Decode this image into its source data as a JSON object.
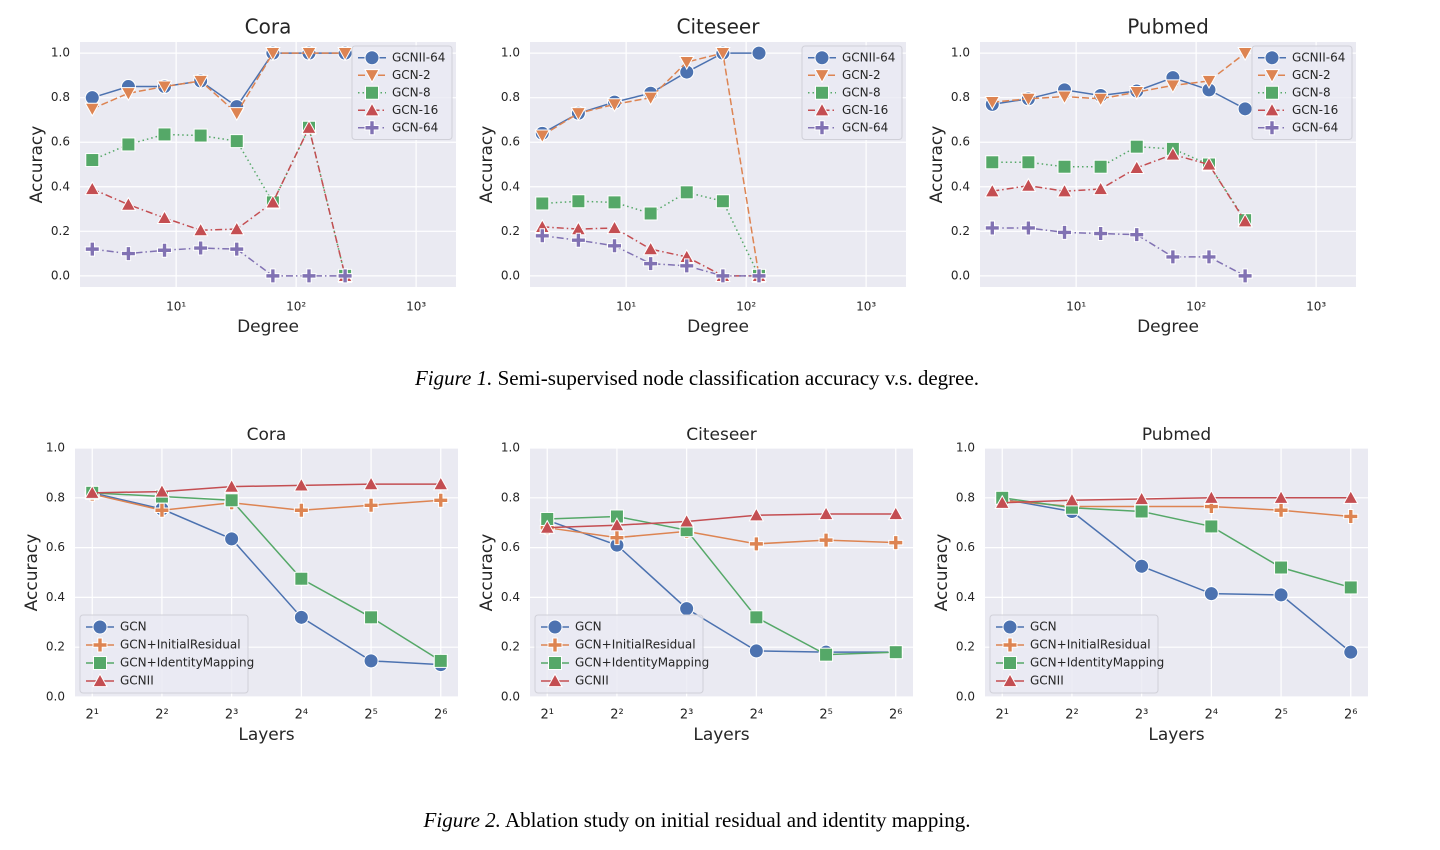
{
  "chart_data": [
    {
      "type": "line",
      "title": "Cora",
      "xlabel": "Degree",
      "ylabel": "Accuracy",
      "xscale": "log",
      "grid": true,
      "legend": "upper right",
      "x": [
        2,
        4,
        8,
        16,
        32,
        64,
        128,
        256
      ],
      "xlim": [
        1.58,
        2150
      ],
      "xticks": [
        {
          "value": 10,
          "label": "10¹"
        },
        {
          "value": 100,
          "label": "10²"
        },
        {
          "value": 1000,
          "label": "10³"
        }
      ],
      "ylim": [
        -0.05,
        1.05
      ],
      "yticks": [
        {
          "value": 0,
          "label": "0.0"
        },
        0.2,
        0.4,
        0.6,
        0.8,
        {
          "value": 1,
          "label": "1.0"
        }
      ],
      "series": [
        {
          "name": "GCNII-64",
          "color": "#4c72b0",
          "marker": "circle",
          "linestyle": "solid",
          "values": [
            0.8,
            0.85,
            0.85,
            0.875,
            0.76,
            1.0,
            1.0,
            1.0
          ]
        },
        {
          "name": "GCN-2",
          "color": "#dd8452",
          "marker": "triangle-down",
          "linestyle": "dashed",
          "values": [
            0.75,
            0.82,
            0.85,
            0.875,
            0.73,
            1.0,
            1.0,
            1.0
          ]
        },
        {
          "name": "GCN-8",
          "color": "#55a868",
          "marker": "square",
          "linestyle": "dotted",
          "values": [
            0.52,
            0.59,
            0.635,
            0.63,
            0.605,
            0.33,
            0.665,
            0.0
          ]
        },
        {
          "name": "GCN-16",
          "color": "#c44e52",
          "marker": "triangle-up",
          "linestyle": "dashdot",
          "values": [
            0.39,
            0.32,
            0.26,
            0.205,
            0.21,
            0.33,
            0.665,
            0.0
          ]
        },
        {
          "name": "GCN-64",
          "color": "#8172b3",
          "marker": "plus",
          "linestyle": "dashdot",
          "values": [
            0.12,
            0.1,
            0.115,
            0.125,
            0.12,
            0.0,
            0.0,
            0.0
          ]
        }
      ]
    },
    {
      "type": "line",
      "title": "Citeseer",
      "xlabel": "Degree",
      "ylabel": "Accuracy",
      "xscale": "log",
      "grid": true,
      "legend": "upper right",
      "x": [
        2,
        4,
        8,
        16,
        32,
        64,
        128
      ],
      "xlim": [
        1.58,
        2150
      ],
      "xticks": [
        {
          "value": 10,
          "label": "10¹"
        },
        {
          "value": 100,
          "label": "10²"
        },
        {
          "value": 1000,
          "label": "10³"
        }
      ],
      "ylim": [
        -0.05,
        1.05
      ],
      "yticks": [
        {
          "value": 0,
          "label": "0.0"
        },
        0.2,
        0.4,
        0.6,
        0.8,
        {
          "value": 1,
          "label": "1.0"
        }
      ],
      "series": [
        {
          "name": "GCNII-64",
          "color": "#4c72b0",
          "marker": "circle",
          "linestyle": "solid",
          "values": [
            0.64,
            0.73,
            0.78,
            0.82,
            0.915,
            1.0,
            1.0
          ]
        },
        {
          "name": "GCN-2",
          "color": "#dd8452",
          "marker": "triangle-down",
          "linestyle": "dashed",
          "values": [
            0.63,
            0.73,
            0.77,
            0.8,
            0.96,
            1.0,
            0.0
          ]
        },
        {
          "name": "GCN-8",
          "color": "#55a868",
          "marker": "square",
          "linestyle": "dotted",
          "values": [
            0.325,
            0.335,
            0.33,
            0.28,
            0.375,
            0.335,
            0.0
          ]
        },
        {
          "name": "GCN-16",
          "color": "#c44e52",
          "marker": "triangle-up",
          "linestyle": "dashdot",
          "values": [
            0.22,
            0.21,
            0.215,
            0.12,
            0.085,
            0.0,
            0.0
          ]
        },
        {
          "name": "GCN-64",
          "color": "#8172b3",
          "marker": "plus",
          "linestyle": "dashdot",
          "values": [
            0.18,
            0.16,
            0.135,
            0.055,
            0.045,
            0.0,
            0.0
          ]
        }
      ]
    },
    {
      "type": "line",
      "title": "Pubmed",
      "xlabel": "Degree",
      "ylabel": "Accuracy",
      "xscale": "log",
      "grid": true,
      "legend": "upper right",
      "x": [
        2,
        4,
        8,
        16,
        32,
        64,
        128,
        256
      ],
      "xlim": [
        1.58,
        2150
      ],
      "xticks": [
        {
          "value": 10,
          "label": "10¹"
        },
        {
          "value": 100,
          "label": "10²"
        },
        {
          "value": 1000,
          "label": "10³"
        }
      ],
      "ylim": [
        -0.05,
        1.05
      ],
      "yticks": [
        {
          "value": 0,
          "label": "0.0"
        },
        0.2,
        0.4,
        0.6,
        0.8,
        {
          "value": 1,
          "label": "1.0"
        }
      ],
      "series": [
        {
          "name": "GCNII-64",
          "color": "#4c72b0",
          "marker": "circle",
          "linestyle": "solid",
          "values": [
            0.77,
            0.795,
            0.835,
            0.81,
            0.83,
            0.89,
            0.835,
            0.75
          ]
        },
        {
          "name": "GCN-2",
          "color": "#dd8452",
          "marker": "triangle-down",
          "linestyle": "dashed",
          "values": [
            0.78,
            0.795,
            0.805,
            0.795,
            0.825,
            0.855,
            0.875,
            1.0
          ]
        },
        {
          "name": "GCN-8",
          "color": "#55a868",
          "marker": "square",
          "linestyle": "dotted",
          "values": [
            0.51,
            0.51,
            0.49,
            0.49,
            0.58,
            0.57,
            0.5,
            0.25
          ]
        },
        {
          "name": "GCN-16",
          "color": "#c44e52",
          "marker": "triangle-up",
          "linestyle": "dashdot",
          "values": [
            0.38,
            0.405,
            0.38,
            0.39,
            0.485,
            0.545,
            0.5,
            0.245
          ]
        },
        {
          "name": "GCN-64",
          "color": "#8172b3",
          "marker": "plus",
          "linestyle": "dashdot",
          "values": [
            0.215,
            0.215,
            0.195,
            0.19,
            0.185,
            0.085,
            0.085,
            0.0
          ]
        }
      ]
    },
    {
      "type": "line",
      "title": "Cora",
      "xlabel": "Layers",
      "ylabel": "Accuracy",
      "grid": true,
      "legend": "lower left",
      "categories": [
        "2¹",
        "2²",
        "2³",
        "2⁴",
        "2⁵",
        "2⁶"
      ],
      "ylim": [
        0,
        1
      ],
      "yticks": [
        {
          "value": 0,
          "label": "0.0"
        },
        0.2,
        0.4,
        0.6,
        0.8,
        {
          "value": 1,
          "label": "1.0"
        }
      ],
      "series": [
        {
          "name": "GCN",
          "color": "#4c72b0",
          "marker": "circle",
          "linestyle": "solid",
          "values": [
            0.82,
            0.755,
            0.635,
            0.32,
            0.145,
            0.13
          ]
        },
        {
          "name": "GCN+InitialResidual",
          "color": "#dd8452",
          "marker": "plus",
          "linestyle": "solid",
          "values": [
            0.815,
            0.75,
            0.78,
            0.75,
            0.77,
            0.79
          ]
        },
        {
          "name": "GCN+IdentityMapping",
          "color": "#55a868",
          "marker": "square",
          "linestyle": "solid",
          "values": [
            0.82,
            0.805,
            0.79,
            0.475,
            0.32,
            0.145
          ]
        },
        {
          "name": "GCNII",
          "color": "#c44e52",
          "marker": "triangle-up",
          "linestyle": "solid",
          "values": [
            0.82,
            0.825,
            0.845,
            0.85,
            0.855,
            0.855
          ]
        }
      ]
    },
    {
      "type": "line",
      "title": "Citeseer",
      "xlabel": "Layers",
      "ylabel": "Accuracy",
      "grid": true,
      "legend": "lower left",
      "categories": [
        "2¹",
        "2²",
        "2³",
        "2⁴",
        "2⁵",
        "2⁶"
      ],
      "ylim": [
        0,
        1
      ],
      "yticks": [
        {
          "value": 0,
          "label": "0.0"
        },
        0.2,
        0.4,
        0.6,
        0.8,
        {
          "value": 1,
          "label": "1.0"
        }
      ],
      "series": [
        {
          "name": "GCN",
          "color": "#4c72b0",
          "marker": "circle",
          "linestyle": "solid",
          "values": [
            0.71,
            0.61,
            0.355,
            0.185,
            0.18,
            0.18
          ]
        },
        {
          "name": "GCN+InitialResidual",
          "color": "#dd8452",
          "marker": "plus",
          "linestyle": "solid",
          "values": [
            0.68,
            0.64,
            0.665,
            0.615,
            0.63,
            0.62
          ]
        },
        {
          "name": "GCN+IdentityMapping",
          "color": "#55a868",
          "marker": "square",
          "linestyle": "solid",
          "values": [
            0.715,
            0.725,
            0.67,
            0.32,
            0.17,
            0.18
          ]
        },
        {
          "name": "GCNII",
          "color": "#c44e52",
          "marker": "triangle-up",
          "linestyle": "solid",
          "values": [
            0.68,
            0.69,
            0.705,
            0.73,
            0.735,
            0.735
          ]
        }
      ]
    },
    {
      "type": "line",
      "title": "Pubmed",
      "xlabel": "Layers",
      "ylabel": "Accuracy",
      "grid": true,
      "legend": "lower left",
      "categories": [
        "2¹",
        "2²",
        "2³",
        "2⁴",
        "2⁵",
        "2⁶"
      ],
      "ylim": [
        0,
        1
      ],
      "yticks": [
        {
          "value": 0,
          "label": "0.0"
        },
        0.2,
        0.4,
        0.6,
        0.8,
        {
          "value": 1,
          "label": "1.0"
        }
      ],
      "series": [
        {
          "name": "GCN",
          "color": "#4c72b0",
          "marker": "circle",
          "linestyle": "solid",
          "values": [
            0.795,
            0.745,
            0.525,
            0.415,
            0.41,
            0.18
          ]
        },
        {
          "name": "GCN+InitialResidual",
          "color": "#dd8452",
          "marker": "plus",
          "linestyle": "solid",
          "values": [
            0.79,
            0.765,
            0.765,
            0.765,
            0.75,
            0.725
          ]
        },
        {
          "name": "GCN+IdentityMapping",
          "color": "#55a868",
          "marker": "square",
          "linestyle": "solid",
          "values": [
            0.8,
            0.76,
            0.745,
            0.685,
            0.52,
            0.44
          ]
        },
        {
          "name": "GCNII",
          "color": "#c44e52",
          "marker": "triangle-up",
          "linestyle": "solid",
          "values": [
            0.78,
            0.79,
            0.795,
            0.8,
            0.8,
            0.8
          ]
        }
      ]
    }
  ],
  "captions": [
    {
      "label": "Figure 1.",
      "text": "Semi-supervised node classification accuracy v.s. degree."
    },
    {
      "label": "Figure 2.",
      "text": "Ablation study on initial residual and identity mapping."
    }
  ]
}
